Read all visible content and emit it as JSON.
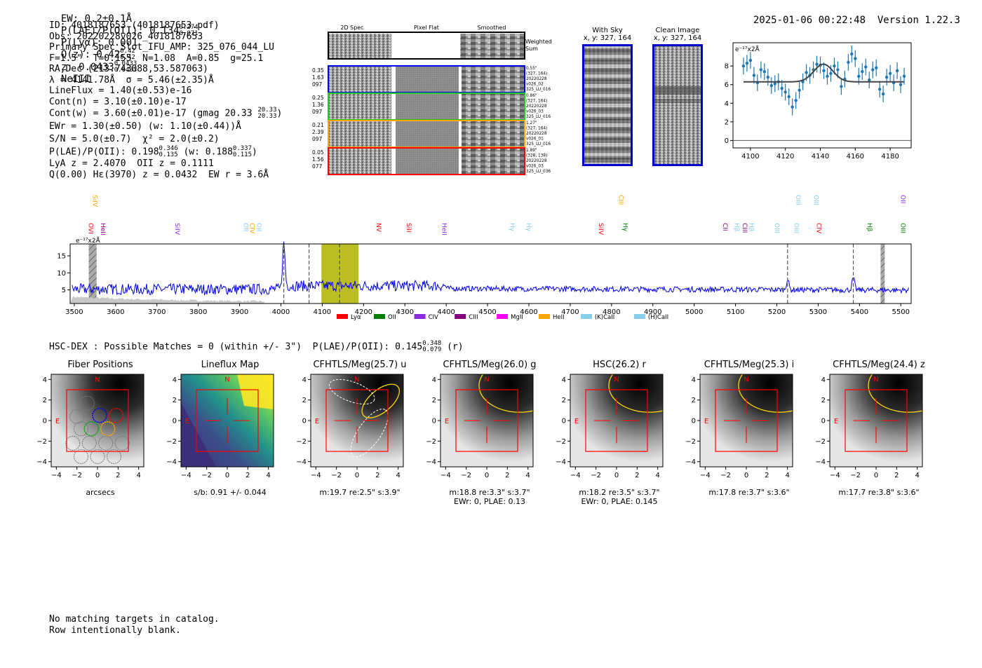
{
  "header": {
    "ew": "EW: 0.2±0.1Å",
    "plae_label": "P(LAE)/P(OII): 0.134",
    "plae_hi": "0.274",
    "plae_lo": "0.071",
    "plya": "P(Lyα): 0.001",
    "qz_label": "Q(z): 0.42",
    "qz_hi": "0.42",
    "qz_lo": "0.42",
    "z_label": "z: 0.0433",
    "z_hi": "0.0433",
    "z_lo": "0.0433",
    "line": "NeIII",
    "timestamp": "2025-01-06 00:22:48",
    "version": "Version 1.22.3"
  },
  "info": {
    "id": "ID: 4018187653 (4018187653.pdf)",
    "obs": "Obs: 20220228v026_4018187653",
    "primary": "Primary Spec_Slot_IFU_AMP: 325_076_044_LU",
    "fiber": "F=1.5\"  T=0.155  N=1.08  A=0.85  g=25.1",
    "radec": "RA,Dec (213.743088,53.587063)",
    "lambda": "λ = 4141.78Å  σ = 5.46(±2.35)Å",
    "lineflux": "LineFlux = 1.40(±0.53)e-16",
    "contn": "Cont(n) = 3.10(±0.10)e-17",
    "contw": "Cont(w) = 3.60(±0.01)e-17 (gmag 20.33",
    "gmag_hi": "20.33",
    "gmag_lo": "20.33",
    "ewr": "EWr = 1.30(±0.50) (w: 1.10(±0.44))Å",
    "sn": "S/N = 5.0(±0.7)  χ² = 2.0(±0.2)",
    "plae2": "P(LAE)/P(OII): 0.198",
    "plae2_hi": "0.346",
    "plae2_lo": "0.135",
    "plae2_w": "(w: 0.188",
    "plae2_w_hi": "0.337",
    "plae2_w_lo": "0.115",
    "lya": "LyA z = 2.4070  OII z = 0.1111",
    "q": "Q(0.00) Hε(3970) z = 0.0432  EW r = 3.6Å"
  },
  "spec2d": {
    "headers": [
      "2D Spec",
      "Pixel Flat",
      "Smoothed"
    ],
    "weighted": "Weighted\nSum",
    "rows": [
      {
        "left": [
          "0.35",
          "1.63",
          "097"
        ],
        "right": [
          "0.55\"",
          "(327, 164)",
          "20220228",
          "v026_02",
          "325_LU_016"
        ],
        "color": "#0000ff"
      },
      {
        "left": [
          "0.25",
          "1.36",
          "097"
        ],
        "right": [
          "0.86\"",
          "(327, 164)",
          "20220228",
          "v026_03",
          "325_LU_016"
        ],
        "color": "#22cc22"
      },
      {
        "left": [
          "0.21",
          "2.39",
          "097"
        ],
        "right": [
          "1.27\"",
          "(327, 164)",
          "20220228",
          "v026_01",
          "325_LU_016"
        ],
        "color": "#ffa500"
      },
      {
        "left": [
          "0.05",
          "1.56",
          "077"
        ],
        "right": [
          "1.89\"",
          "(328, 138)",
          "20220228",
          "v026_03",
          "325_LU_036"
        ],
        "color": "#ff0000"
      }
    ]
  },
  "sky": {
    "with_sky": "With Sky",
    "with_sky_xy": "x, y: 327, 164",
    "clean": "Clean Image",
    "clean_xy": "x, y: 327, 164"
  },
  "chart_data": [
    {
      "type": "scatter",
      "name": "line-fit",
      "unit": "e⁻¹⁷x2Å",
      "xlim": [
        4090,
        4192
      ],
      "ylim": [
        -0.8,
        10.5
      ],
      "xticks": [
        4100,
        4120,
        4140,
        4160,
        4180
      ],
      "yticks": [
        0,
        2,
        4,
        6,
        8
      ],
      "x": [
        4096,
        4098,
        4100,
        4102,
        4104,
        4106,
        4108,
        4110,
        4112,
        4114,
        4116,
        4118,
        4120,
        4122,
        4124,
        4126,
        4128,
        4130,
        4132,
        4134,
        4136,
        4138,
        4140,
        4142,
        4144,
        4146,
        4148,
        4150,
        4152,
        4154,
        4156,
        4158,
        4160,
        4162,
        4164,
        4166,
        4168,
        4170,
        4172,
        4174,
        4176,
        4178,
        4180,
        4182,
        4184,
        4186,
        4188
      ],
      "y": [
        8.0,
        8.3,
        8.6,
        7.0,
        6.2,
        7.6,
        7.4,
        6.8,
        5.9,
        6.1,
        6.3,
        5.6,
        5.2,
        4.7,
        3.6,
        4.3,
        5.4,
        6.3,
        7.3,
        7.0,
        7.6,
        8.2,
        8.1,
        7.5,
        6.9,
        7.2,
        8.0,
        7.6,
        5.8,
        6.6,
        8.4,
        9.3,
        8.8,
        6.9,
        7.4,
        7.9,
        6.5,
        7.6,
        7.8,
        5.5,
        5.0,
        6.8,
        7.2,
        6.2,
        7.5,
        6.0,
        6.9
      ],
      "err": [
        0.9,
        0.9,
        0.9,
        0.9,
        0.9,
        0.9,
        0.9,
        0.9,
        0.9,
        0.9,
        0.9,
        0.9,
        0.9,
        0.9,
        0.9,
        0.9,
        0.9,
        0.9,
        0.9,
        0.9,
        0.9,
        0.9,
        0.9,
        0.9,
        0.9,
        0.9,
        0.9,
        0.9,
        0.9,
        0.9,
        0.9,
        0.9,
        0.9,
        0.9,
        0.9,
        0.9,
        0.9,
        0.9,
        0.9,
        0.9,
        0.9,
        0.9,
        0.9,
        0.9,
        0.9,
        0.9,
        0.9
      ],
      "fit": {
        "center": 4141.78,
        "sigma": 5.46,
        "amplitude": 1.9,
        "baseline": 6.3,
        "range": [
          4096,
          4188
        ]
      }
    },
    {
      "type": "line",
      "name": "full-spectrum",
      "unit": "e⁻¹⁷x2Å",
      "xlim": [
        3490,
        5525
      ],
      "ylim": [
        1,
        18.5
      ],
      "xticks": [
        3500,
        3600,
        3700,
        3800,
        3900,
        4000,
        4100,
        4200,
        4300,
        4400,
        4500,
        4600,
        4700,
        4800,
        4900,
        5000,
        5100,
        5200,
        5300,
        5400,
        5500
      ],
      "yticks": [
        5,
        10,
        15
      ],
      "dashed_lines": [
        4007,
        4068,
        4142,
        5226,
        5385
      ],
      "shaded_band": [
        4098,
        4188
      ],
      "hatched_bands": [
        [
          3535,
          3554
        ],
        [
          5451,
          5461
        ]
      ],
      "peaks": [
        {
          "x": 4007,
          "h": 12.5
        },
        {
          "x": 5226,
          "h": 3.0
        },
        {
          "x": 5385,
          "h": 3.5
        }
      ],
      "legend": [
        {
          "label": "Lyα",
          "color": "#ff0000"
        },
        {
          "label": "OII",
          "color": "#008000"
        },
        {
          "label": "CIV",
          "color": "#8a2be2"
        },
        {
          "label": "CIII",
          "color": "#800080"
        },
        {
          "label": "MgII",
          "color": "#ff00ff"
        },
        {
          "label": "HeII",
          "color": "#ffa500"
        },
        {
          "label": "(K)CaII",
          "color": "#87ceeb"
        },
        {
          "label": "(H)CaII",
          "color": "#87ceeb"
        }
      ],
      "line_labels": [
        {
          "x": 3535,
          "label": "OVI",
          "color": "#ff0000",
          "row": 1
        },
        {
          "x": 3545,
          "label": "SiIV",
          "color": "#ffa500",
          "row": 0
        },
        {
          "x": 3565,
          "label": "HeII",
          "color": "#800080",
          "row": 1
        },
        {
          "x": 3745,
          "label": "SiIV",
          "color": "#8a2be2",
          "row": 1
        },
        {
          "x": 3910,
          "label": "OII",
          "color": "#87ceeb",
          "row": 1
        },
        {
          "x": 3925,
          "label": "CIV",
          "color": "#ffa500",
          "row": 1
        },
        {
          "x": 3942,
          "label": "OII",
          "color": "#87ceeb",
          "row": 1
        },
        {
          "x": 4232,
          "label": "NV",
          "color": "#ff0000",
          "row": 1
        },
        {
          "x": 4305,
          "label": "SiII",
          "color": "#ff0000",
          "row": 1
        },
        {
          "x": 4390,
          "label": "HeII",
          "color": "#8a2be2",
          "row": 1
        },
        {
          "x": 4555,
          "label": "Hγ",
          "color": "#87ceeb",
          "row": 1
        },
        {
          "x": 4595,
          "label": "Hγ",
          "color": "#87ceeb",
          "row": 1
        },
        {
          "x": 4770,
          "label": "SiIV",
          "color": "#ff0000",
          "row": 1
        },
        {
          "x": 4818,
          "label": "CIII",
          "color": "#ffa500",
          "row": 0
        },
        {
          "x": 4828,
          "label": "Hγ",
          "color": "#008000",
          "row": 1
        },
        {
          "x": 5070,
          "label": "CII",
          "color": "#800080",
          "row": 1
        },
        {
          "x": 5098,
          "label": "Hβ",
          "color": "#87ceeb",
          "row": 1
        },
        {
          "x": 5118,
          "label": "CIII",
          "color": "#800080",
          "row": 1
        },
        {
          "x": 5134,
          "label": "Hβ",
          "color": "#87ceeb",
          "row": 1
        },
        {
          "x": 5196,
          "label": "OIII",
          "color": "#87ceeb",
          "row": 1
        },
        {
          "x": 5247,
          "label": "OIII",
          "color": "#87ceeb",
          "row": 0
        },
        {
          "x": 5242,
          "label": "OIII",
          "color": "#87ceeb",
          "row": 1
        },
        {
          "x": 5290,
          "label": "OIII",
          "color": "#87ceeb",
          "row": 0
        },
        {
          "x": 5297,
          "label": "CIV",
          "color": "#ff0000",
          "row": 1
        },
        {
          "x": 5420,
          "label": "Hβ",
          "color": "#008000",
          "row": 1
        },
        {
          "x": 5500,
          "label": "OII",
          "color": "#8a2be2",
          "row": 0
        },
        {
          "x": 5500,
          "label": "OIII",
          "color": "#008000",
          "row": 1
        }
      ]
    }
  ],
  "hsc": {
    "title": "HSC-DEX : Possible Matches = 0 (within +/- 3\")  P(LAE)/P(OII): 0.145",
    "plae_hi": "0.348",
    "plae_lo": "0.079",
    "band": "(r)"
  },
  "cutouts": [
    {
      "title": "Fiber Positions",
      "xlabel": "arcsecs",
      "sub2": "",
      "kind": "fiber"
    },
    {
      "title": "Lineflux Map",
      "xlabel": "s/b: 0.91 +/- 0.044",
      "sub2": "",
      "kind": "flux"
    },
    {
      "title": "CFHTLS/Meg(25.7) u",
      "xlabel": "m:19.7  re:2.5\"  s:3.9\"",
      "sub2": "",
      "kind": "u"
    },
    {
      "title": "CFHTLS/Meg(26.0) g",
      "xlabel": "m:18.8  re:3.3\"  s:3.7\"",
      "sub2": "EWr: 0, PLAE: 0.13",
      "kind": "img"
    },
    {
      "title": "HSC(26.2) r",
      "xlabel": "m:18.2  re:3.5\"  s:3.7\"",
      "sub2": "EWr: 0, PLAE: 0.145",
      "kind": "img"
    },
    {
      "title": "CFHTLS/Meg(25.3) i",
      "xlabel": "m:17.8  re:3.7\"  s:3.6\"",
      "sub2": "",
      "kind": "img"
    },
    {
      "title": "CFHTLS/Meg(24.4) z",
      "xlabel": "m:17.7  re:3.8\"  s:3.6\"",
      "sub2": "",
      "kind": "img"
    }
  ],
  "cutout_axes": {
    "ticks": [
      "−4",
      "−2",
      "0",
      "2",
      "4"
    ],
    "n_label": "N",
    "e_label": "E"
  },
  "footer": {
    "line1": "No matching targets in catalog.",
    "line2": "Row intentionally blank."
  }
}
